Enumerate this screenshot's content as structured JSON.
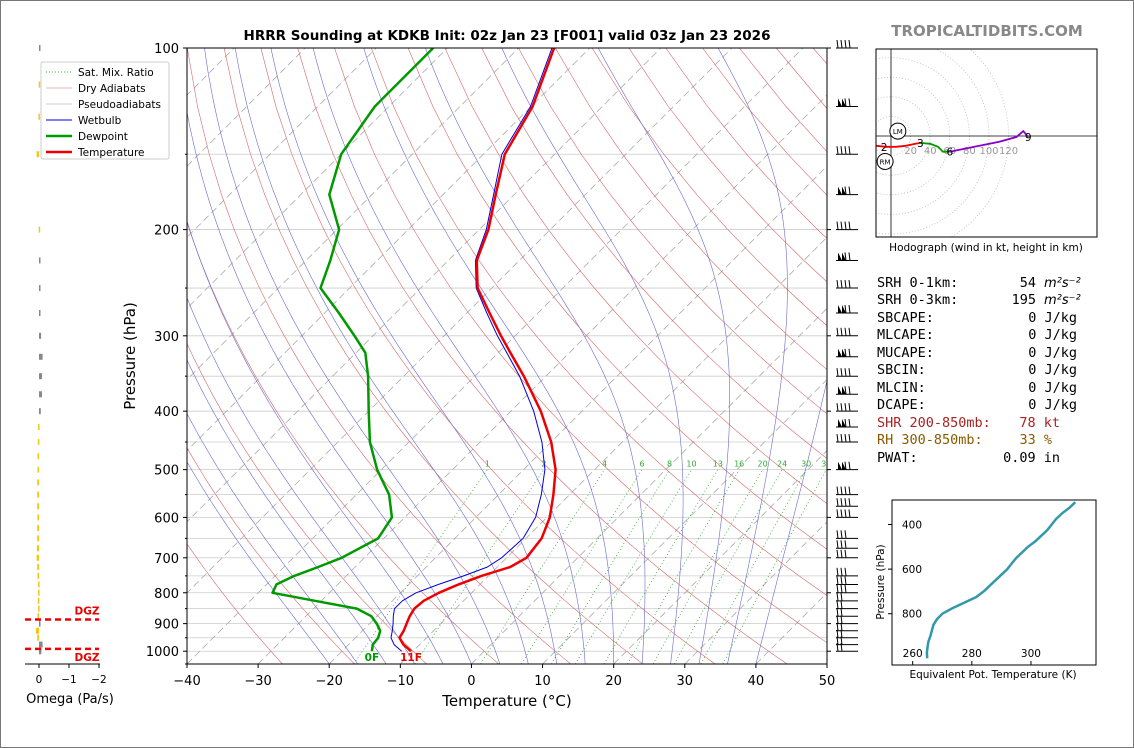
{
  "header": {
    "title": "HRRR Sounding at KDKB Init: 02z Jan 23 [F001] valid 03z Jan 23 2026",
    "brand": "TROPICALTIDBITS.COM"
  },
  "colors": {
    "temperature": "#ee0000",
    "dewpoint": "#009900",
    "wetbulb": "#0000dd",
    "dry_adiabat": "#d46a6a",
    "moist_adiabat": "#6a6ad4",
    "mixing_ratio": "#33aa33",
    "isotherm_dashed": "#999999",
    "brand": "#888888",
    "shr": "#aa2222",
    "rh": "#8b5a00",
    "eqpt_line": "#3399aa",
    "omega_positive": "#f5c518",
    "omega_negative": "#888888",
    "dgz": "#ee0000"
  },
  "chart_data": [
    {
      "name": "skewt",
      "type": "line",
      "ylabel": "Pressure (hPa)",
      "xlabel": "Temperature (°C)",
      "xlim": [
        -40,
        50
      ],
      "ylim": [
        1050,
        100
      ],
      "y_scale": "log",
      "skew": "45°",
      "x_ticks": [
        "−40",
        "−30",
        "−20",
        "−10",
        "0",
        "10",
        "20",
        "30",
        "40",
        "50"
      ],
      "y_ticks": [
        "100",
        "200",
        "300",
        "400",
        "500",
        "600",
        "700",
        "800",
        "900",
        "1000"
      ],
      "grid": true,
      "legend_position": "top-left",
      "legend": [
        "Sat. Mix. Ratio",
        "Dry Adiabats",
        "Pseudoadiabats",
        "Wetbulb",
        "Dewpoint",
        "Temperature"
      ],
      "mixing_ratio_labels": [
        "1",
        "2",
        "4",
        "6",
        "8",
        "10",
        "13",
        "16",
        "20",
        "24",
        "30",
        "36"
      ],
      "series": [
        {
          "name": "Temperature",
          "points": [
            [
              1000,
              -10.3
            ],
            [
              975,
              -12.3
            ],
            [
              950,
              -13.8
            ],
            [
              925,
              -14.2
            ],
            [
              900,
              -14.8
            ],
            [
              875,
              -15.4
            ],
            [
              850,
              -15.8
            ],
            [
              825,
              -15.6
            ],
            [
              800,
              -14.6
            ],
            [
              775,
              -13.0
            ],
            [
              750,
              -11.0
            ],
            [
              725,
              -8.2
            ],
            [
              700,
              -7.2
            ],
            [
              650,
              -7.8
            ],
            [
              600,
              -9.6
            ],
            [
              550,
              -12.3
            ],
            [
              500,
              -15.5
            ],
            [
              450,
              -20.0
            ],
            [
              400,
              -25.8
            ],
            [
              350,
              -33.1
            ],
            [
              320,
              -38.3
            ],
            [
              300,
              -42.0
            ],
            [
              275,
              -46.8
            ],
            [
              250,
              -52.0
            ],
            [
              225,
              -56.0
            ],
            [
              200,
              -58.7
            ],
            [
              175,
              -62.6
            ],
            [
              150,
              -67.0
            ],
            [
              125,
              -69.8
            ],
            [
              100,
              -75.0
            ]
          ]
        },
        {
          "name": "Dewpoint",
          "points": [
            [
              1000,
              -15.8
            ],
            [
              975,
              -16.6
            ],
            [
              950,
              -16.8
            ],
            [
              925,
              -17.5
            ],
            [
              900,
              -19.0
            ],
            [
              875,
              -20.8
            ],
            [
              850,
              -23.9
            ],
            [
              825,
              -30.9
            ],
            [
              800,
              -38.0
            ],
            [
              775,
              -38.6
            ],
            [
              750,
              -37.3
            ],
            [
              725,
              -35.2
            ],
            [
              700,
              -33.2
            ],
            [
              650,
              -30.8
            ],
            [
              600,
              -31.8
            ],
            [
              550,
              -35.4
            ],
            [
              500,
              -40.6
            ],
            [
              450,
              -45.5
            ],
            [
              400,
              -50.0
            ],
            [
              350,
              -55.0
            ],
            [
              320,
              -58.7
            ],
            [
              300,
              -62.6
            ],
            [
              275,
              -68.0
            ],
            [
              250,
              -74.1
            ],
            [
              225,
              -76.6
            ],
            [
              200,
              -79.7
            ],
            [
              175,
              -86.0
            ],
            [
              150,
              -90.0
            ],
            [
              125,
              -92.0
            ],
            [
              100,
              -92.0
            ]
          ]
        },
        {
          "name": "Wetbulb",
          "points": [
            [
              1000,
              -11.6
            ],
            [
              975,
              -13.6
            ],
            [
              950,
              -15.0
            ],
            [
              925,
              -15.8
            ],
            [
              900,
              -16.7
            ],
            [
              875,
              -17.7
            ],
            [
              850,
              -18.6
            ],
            [
              825,
              -18.6
            ],
            [
              800,
              -17.8
            ],
            [
              775,
              -15.8
            ],
            [
              750,
              -13.5
            ],
            [
              725,
              -11.4
            ],
            [
              700,
              -10.7
            ],
            [
              650,
              -10.4
            ],
            [
              600,
              -11.6
            ],
            [
              550,
              -14.0
            ],
            [
              500,
              -17.0
            ],
            [
              450,
              -21.3
            ],
            [
              400,
              -26.8
            ],
            [
              350,
              -33.7
            ],
            [
              320,
              -38.8
            ],
            [
              300,
              -42.5
            ],
            [
              275,
              -47.2
            ],
            [
              250,
              -52.2
            ],
            [
              225,
              -56.2
            ],
            [
              200,
              -59.0
            ],
            [
              175,
              -62.9
            ],
            [
              150,
              -67.4
            ],
            [
              125,
              -70.1
            ],
            [
              100,
              -75.3
            ]
          ]
        }
      ],
      "surface_labels": {
        "dewpoint": "0F",
        "temperature": "11F"
      },
      "wind_barb_levels_hpa": [
        1000,
        975,
        950,
        925,
        900,
        875,
        850,
        825,
        800,
        775,
        750,
        700,
        675,
        650,
        600,
        575,
        550,
        500,
        450,
        425,
        400,
        375,
        350,
        325,
        300,
        275,
        250,
        225,
        200,
        175,
        150,
        125,
        100
      ]
    },
    {
      "name": "omega",
      "type": "bar",
      "xlabel": "Omega (Pa/s)",
      "x_ticks": [
        "0",
        "−1",
        "−2"
      ],
      "dgz_label": "DGZ",
      "dgz_range_hpa": [
        991,
        886
      ],
      "points": [
        [
          1000,
          -0.08
        ],
        [
          975,
          -0.12
        ],
        [
          950,
          0.06
        ],
        [
          925,
          0.1
        ],
        [
          900,
          -0.04
        ],
        [
          875,
          0.05
        ],
        [
          850,
          0.03
        ],
        [
          825,
          0.04
        ],
        [
          800,
          0.03
        ],
        [
          775,
          0.03
        ],
        [
          750,
          0.05
        ],
        [
          725,
          0.06
        ],
        [
          700,
          0.08
        ],
        [
          675,
          0.07
        ],
        [
          650,
          0.06
        ],
        [
          625,
          0.06
        ],
        [
          600,
          0.05
        ],
        [
          575,
          0.06
        ],
        [
          550,
          0.06
        ],
        [
          525,
          0.06
        ],
        [
          500,
          0.05
        ],
        [
          475,
          0.05
        ],
        [
          450,
          0.04
        ],
        [
          425,
          0.03
        ],
        [
          400,
          -0.06
        ],
        [
          375,
          -0.1
        ],
        [
          350,
          -0.1
        ],
        [
          325,
          -0.12
        ],
        [
          300,
          -0.07
        ],
        [
          275,
          -0.04
        ],
        [
          250,
          -0.03
        ],
        [
          225,
          -0.02
        ],
        [
          200,
          0.01
        ],
        [
          150,
          0.08
        ],
        [
          130,
          0.02
        ],
        [
          115,
          0.01
        ],
        [
          100,
          -0.01
        ]
      ]
    },
    {
      "name": "hodograph",
      "type": "line",
      "caption": "Hodograph (wind in kt, height in km)",
      "ring_labels": [
        "20",
        "40",
        "60",
        "80",
        "100",
        "120"
      ],
      "height_labels": [
        "1",
        "2",
        "3",
        "6",
        "9"
      ],
      "markers": [
        "LM",
        "RM"
      ],
      "series": [
        {
          "name": "0-3 km",
          "color": "#ee0000",
          "points": [
            [
              -35,
              -8
            ],
            [
              -31,
              -11
            ],
            [
              -27,
              -13
            ],
            [
              -24,
              -12
            ],
            [
              -20,
              -9
            ],
            [
              -15,
              -10
            ],
            [
              -5,
              -11
            ],
            [
              5,
              -11
            ],
            [
              15,
              -10
            ],
            [
              25,
              -8
            ],
            [
              30,
              -7
            ]
          ]
        },
        {
          "name": "3-6 km",
          "color": "#009900",
          "points": [
            [
              30,
              -7
            ],
            [
              40,
              -8
            ],
            [
              48,
              -11
            ],
            [
              53,
              -16
            ],
            [
              60,
              -16
            ]
          ]
        },
        {
          "name": "6-9 km",
          "color": "#8800cc",
          "points": [
            [
              60,
              -16
            ],
            [
              80,
              -12
            ],
            [
              110,
              -6
            ],
            [
              128,
              -1
            ],
            [
              135,
              5
            ],
            [
              140,
              -1
            ]
          ]
        }
      ],
      "height_points": [
        {
          "label": "1",
          "at": [
            -19,
            -9
          ]
        },
        {
          "label": "2",
          "at": [
            -7,
            -11
          ]
        },
        {
          "label": "3",
          "at": [
            30,
            -7
          ]
        },
        {
          "label": "6",
          "at": [
            60,
            -16
          ]
        },
        {
          "label": "9",
          "at": [
            140,
            -1
          ]
        }
      ],
      "storm_motion": {
        "LM": [
          7,
          5
        ],
        "RM": [
          -6,
          -26
        ]
      }
    },
    {
      "name": "equivalent_potential_temperature",
      "type": "line",
      "xlabel": "Equivalent Pot. Temperature (K)",
      "ylabel": "Pressure (hPa)",
      "x_ticks": [
        "260",
        "280",
        "300"
      ],
      "y_ticks": [
        "400",
        "600",
        "800"
      ],
      "xlim": [
        253,
        322
      ],
      "ylim": [
        1030,
        290
      ],
      "points": [
        [
          1000,
          264.9
        ],
        [
          975,
          264.8
        ],
        [
          950,
          265.0
        ],
        [
          925,
          265.3
        ],
        [
          900,
          266.0
        ],
        [
          875,
          266.5
        ],
        [
          850,
          267.0
        ],
        [
          825,
          268.2
        ],
        [
          800,
          270.0
        ],
        [
          775,
          273.5
        ],
        [
          750,
          277.5
        ],
        [
          725,
          281.5
        ],
        [
          700,
          284.0
        ],
        [
          675,
          286.0
        ],
        [
          650,
          288.0
        ],
        [
          625,
          290.0
        ],
        [
          600,
          292.0
        ],
        [
          575,
          293.5
        ],
        [
          550,
          295.0
        ],
        [
          525,
          297.0
        ],
        [
          500,
          299.0
        ],
        [
          475,
          301.5
        ],
        [
          450,
          303.5
        ],
        [
          425,
          305.5
        ],
        [
          400,
          307.0
        ],
        [
          375,
          308.5
        ],
        [
          350,
          310.5
        ],
        [
          325,
          313.0
        ],
        [
          300,
          315.0
        ]
      ]
    }
  ],
  "indices": {
    "srh_01": {
      "label": "SRH 0-1km:",
      "value": "54",
      "unit": "m²s⁻²"
    },
    "srh_03": {
      "label": "SRH 0-3km:",
      "value": "195",
      "unit": "m²s⁻²"
    },
    "sbcape": {
      "label": "SBCAPE:",
      "value": "0 J/kg"
    },
    "mlcape": {
      "label": "MLCAPE:",
      "value": "0 J/kg"
    },
    "mucape": {
      "label": "MUCAPE:",
      "value": "0 J/kg"
    },
    "sbcin": {
      "label": "SBCIN:",
      "value": "0 J/kg"
    },
    "mlcin": {
      "label": "MLCIN:",
      "value": "0 J/kg"
    },
    "dcape": {
      "label": "DCAPE:",
      "value": "0 J/kg"
    },
    "shr": {
      "label": "SHR 200-850mb:",
      "value": "78 kt"
    },
    "rh": {
      "label": "RH 300-850mb:",
      "value": "33 %"
    },
    "pwat": {
      "label": "PWAT:",
      "value": "0.09 in"
    }
  }
}
